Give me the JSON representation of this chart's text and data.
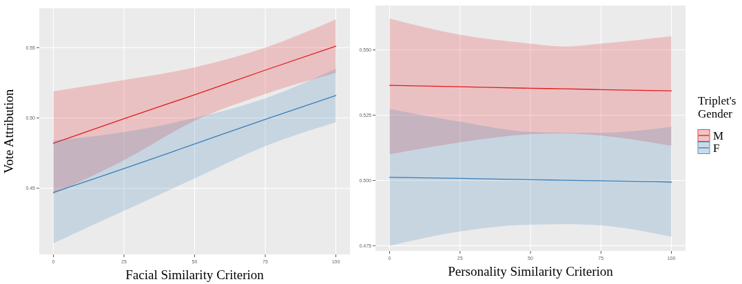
{
  "chart_data": [
    {
      "type": "line",
      "xlabel": "Facial Similarity Criterion",
      "ylabel": "Vote Attribution",
      "x": [
        0,
        25,
        50,
        75,
        100
      ],
      "xlim": [
        -5,
        105
      ],
      "xticks": [
        0,
        25,
        50,
        75,
        100
      ],
      "ylim": [
        0.403,
        0.578
      ],
      "yticks": [
        {
          "value": 0.45,
          "label": "0.45"
        },
        {
          "value": 0.5,
          "label": "0.50"
        },
        {
          "value": 0.55,
          "label": "0.55"
        }
      ],
      "grid": true,
      "legend": false,
      "series": [
        {
          "color": "#e41a1c",
          "values": [
            0.482,
            0.4995,
            0.5165,
            0.534,
            0.551
          ],
          "lower": [
            0.446,
            0.47,
            0.498,
            0.517,
            0.532
          ],
          "upper": [
            0.519,
            0.527,
            0.536,
            0.55,
            0.57
          ]
        },
        {
          "color": "#377eb8",
          "values": [
            0.447,
            0.464,
            0.4815,
            0.499,
            0.516
          ],
          "lower": [
            0.411,
            0.434,
            0.457,
            0.48,
            0.497
          ],
          "upper": [
            0.484,
            0.49,
            0.5,
            0.514,
            0.535
          ]
        }
      ]
    },
    {
      "type": "line",
      "xlabel": "Personality Similarity Criterion",
      "legend_title": "Triplet's Gender",
      "x": [
        0,
        25,
        50,
        62,
        75,
        100
      ],
      "xlim": [
        -5,
        105
      ],
      "xticks": [
        0,
        25,
        50,
        75,
        100
      ],
      "ylim": [
        0.473,
        0.567
      ],
      "yticks": [
        {
          "value": 0.475,
          "label": "0.475"
        },
        {
          "value": 0.5,
          "label": "0.500"
        },
        {
          "value": 0.525,
          "label": "0.525"
        },
        {
          "value": 0.55,
          "label": "0.550"
        }
      ],
      "grid": true,
      "legend": "right",
      "series": [
        {
          "name": "M",
          "color": "#e41a1c",
          "values": [
            0.5364,
            0.5359,
            0.5353,
            0.5351,
            0.5348,
            0.5343
          ],
          "lower": [
            0.51,
            0.5146,
            0.5177,
            0.518,
            0.5172,
            0.5133
          ],
          "upper": [
            0.562,
            0.5558,
            0.5524,
            0.5513,
            0.5524,
            0.5552
          ]
        },
        {
          "name": "F",
          "color": "#377eb8",
          "values": [
            0.5012,
            0.5008,
            0.5003,
            0.5001,
            0.4999,
            0.4994
          ],
          "lower": [
            0.475,
            0.4805,
            0.4831,
            0.4833,
            0.4828,
            0.4784
          ],
          "upper": [
            0.5274,
            0.5225,
            0.5186,
            0.5183,
            0.5183,
            0.5206
          ]
        }
      ]
    }
  ]
}
